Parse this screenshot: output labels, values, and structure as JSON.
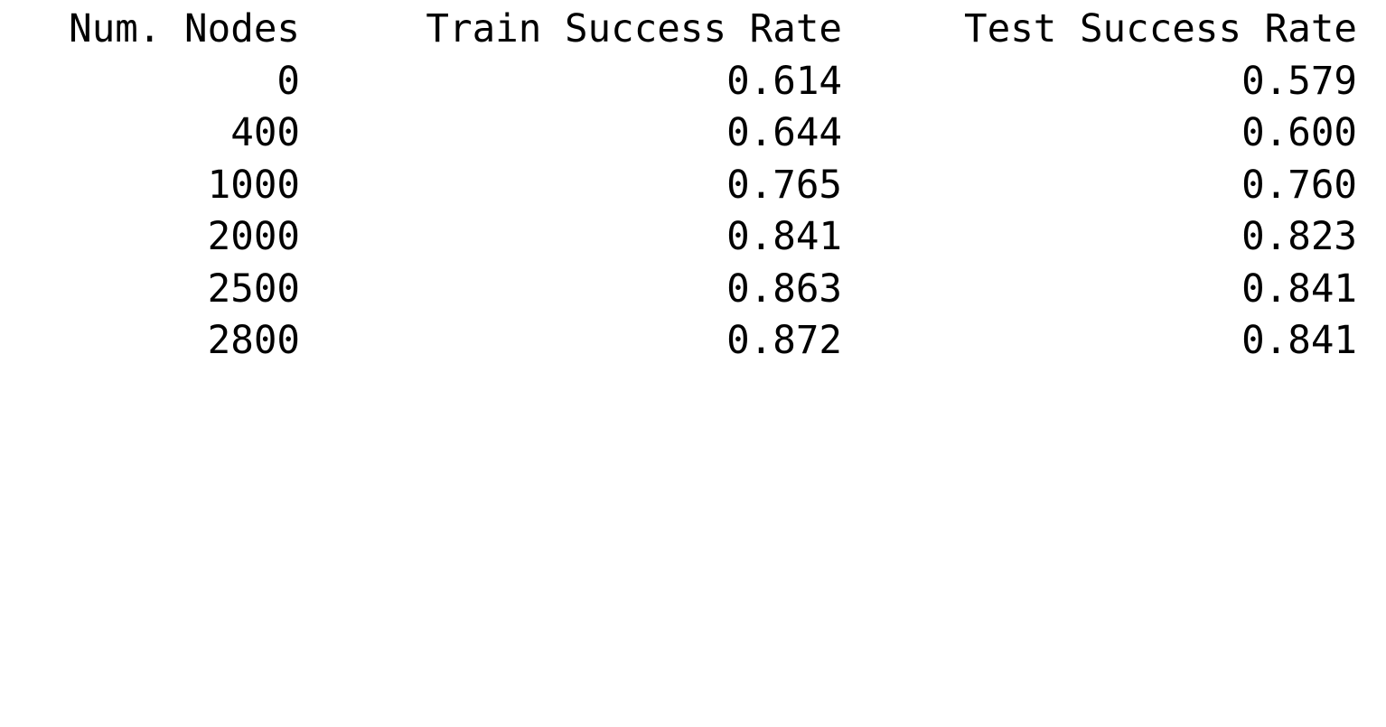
{
  "table": {
    "headers": [
      "Num. Nodes",
      "Train Success Rate",
      "Test Success Rate"
    ],
    "rows": [
      [
        "0",
        "0.614",
        "0.579"
      ],
      [
        "400",
        "0.644",
        "0.600"
      ],
      [
        "1000",
        "0.765",
        "0.760"
      ],
      [
        "2000",
        "0.841",
        "0.823"
      ],
      [
        "2500",
        "0.863",
        "0.841"
      ],
      [
        "2800",
        "0.872",
        "0.841"
      ]
    ]
  }
}
